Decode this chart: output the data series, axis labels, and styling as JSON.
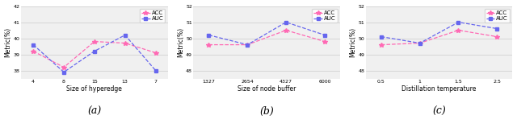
{
  "subplot_a": {
    "xlabel": "Size of hyperedge",
    "ylabel": "Metric(%)",
    "label": "(a)",
    "x_positions": [
      0,
      1,
      2,
      3,
      4
    ],
    "x_labels": [
      "4",
      "8",
      "15",
      "13",
      "7"
    ],
    "acc": [
      39.2,
      38.2,
      39.8,
      39.7,
      39.1
    ],
    "auc": [
      39.6,
      37.9,
      39.2,
      40.2,
      38.0
    ],
    "ylim": [
      37.5,
      42
    ],
    "yticks": [
      38,
      39,
      40,
      41,
      42
    ],
    "ytick_labels": [
      "38",
      "39",
      "40",
      "41",
      "42"
    ]
  },
  "subplot_b": {
    "xlabel": "Size of node buffer",
    "ylabel": "Metric(%)",
    "label": "(b)",
    "x_positions": [
      0,
      1,
      2,
      3
    ],
    "x_labels": [
      "1327",
      "2654",
      "4327",
      "6000"
    ],
    "acc": [
      49.6,
      49.6,
      50.5,
      49.8
    ],
    "auc": [
      50.2,
      49.6,
      51.0,
      50.2
    ],
    "ylim": [
      47.5,
      52
    ],
    "yticks": [
      48,
      49,
      50,
      51,
      52
    ],
    "ytick_labels": [
      "48",
      "49",
      "50",
      "51",
      "52"
    ]
  },
  "subplot_c": {
    "xlabel": "Distillation temperature",
    "ylabel": "Metric(%)",
    "label": "(c)",
    "x_positions": [
      0,
      1,
      2,
      3
    ],
    "x_labels": [
      "0.5",
      "1",
      "1.5",
      "2.5"
    ],
    "acc": [
      49.6,
      49.7,
      50.5,
      50.1
    ],
    "auc": [
      50.1,
      49.7,
      51.0,
      50.6
    ],
    "ylim": [
      47.5,
      52
    ],
    "yticks": [
      48,
      49,
      50,
      51,
      52
    ],
    "ytick_labels": [
      "48",
      "49",
      "50",
      "51",
      "52"
    ]
  },
  "acc_color": "#FF69B4",
  "auc_color": "#6666EE",
  "acc_marker": "*",
  "auc_marker": "s",
  "line_style": "--",
  "legend_labels": [
    "ACC",
    "AUC"
  ],
  "grid_color": "#cccccc",
  "background_color": "#f0f0f0",
  "fontsize_label": 5.5,
  "fontsize_tick": 4.5,
  "fontsize_caption": 9,
  "fontsize_legend": 5
}
